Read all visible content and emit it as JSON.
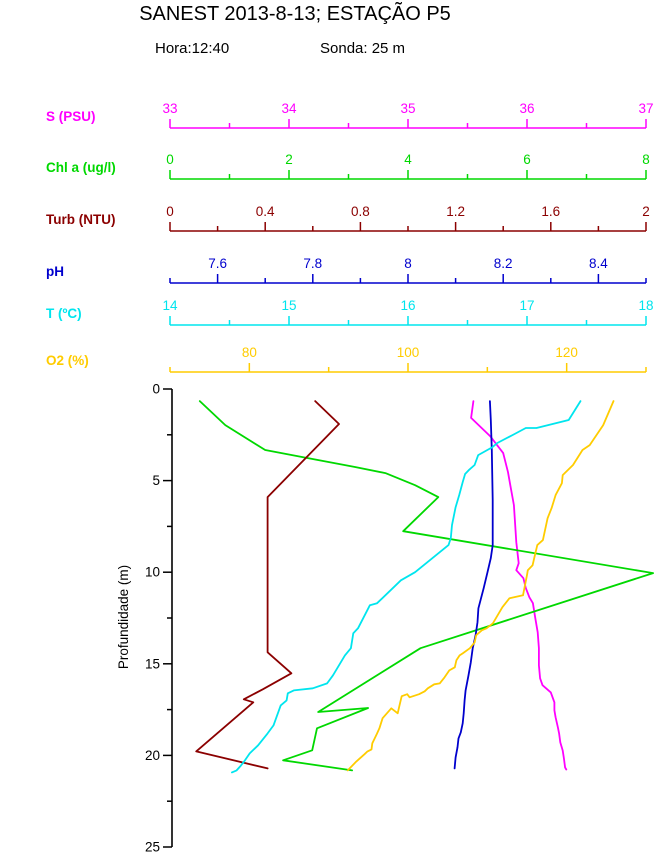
{
  "header": {
    "title": "SANEST 2013-8-13; ESTAÇÃO P5",
    "hora": "Hora:12:40",
    "sonda": "Sonda: 25 m"
  },
  "chart_data": {
    "type": "line",
    "title": "SANEST 2013-8-13; ESTAÇÃO P5",
    "subtitle": {
      "hora": "Hora:12:40",
      "sonda": "Sonda: 25 m"
    },
    "ylabel": "Profundidade (m)",
    "grid": false,
    "legend_position": "left-axis-labels",
    "depth_axis": {
      "min": 0,
      "max": 25,
      "labeled": [
        "0",
        "5",
        "10",
        "15",
        "20",
        "25"
      ],
      "minor_step": 2.5,
      "unit": "m"
    },
    "series": [
      {
        "id": "s-psu",
        "name": "S (PSU)",
        "color": "#FF00FF",
        "axis": {
          "min": 33,
          "max": 37,
          "labeled": [
            "33",
            "34",
            "35",
            "36",
            "37"
          ],
          "minor_step": 0.5
        },
        "points": [
          [
            35.55,
            0.66
          ],
          [
            35.53,
            1.58
          ],
          [
            35.69,
            2.57
          ],
          [
            35.8,
            3.5
          ],
          [
            35.84,
            4.54
          ],
          [
            35.86,
            5.25
          ],
          [
            35.89,
            6.34
          ],
          [
            35.91,
            8.36
          ],
          [
            35.93,
            9.51
          ],
          [
            35.91,
            9.89
          ],
          [
            35.97,
            10.33
          ],
          [
            35.99,
            10.87
          ],
          [
            36.02,
            11.37
          ],
          [
            36.05,
            11.69
          ],
          [
            36.07,
            12.51
          ],
          [
            36.09,
            13.28
          ],
          [
            36.1,
            14.15
          ],
          [
            36.1,
            15.08
          ],
          [
            36.11,
            15.79
          ],
          [
            36.13,
            16.17
          ],
          [
            36.2,
            16.56
          ],
          [
            36.23,
            17.1
          ],
          [
            36.23,
            17.54
          ],
          [
            36.24,
            17.92
          ],
          [
            36.26,
            18.47
          ],
          [
            36.27,
            18.8
          ],
          [
            36.28,
            19.29
          ],
          [
            36.3,
            19.73
          ],
          [
            36.31,
            20.16
          ],
          [
            36.32,
            20.66
          ],
          [
            36.33,
            20.77
          ]
        ]
      },
      {
        "id": "chl-a",
        "name": "Chl a (ug/l)",
        "color": "#00D800",
        "axis": {
          "min": 0,
          "max": 8,
          "labeled": [
            "0",
            "2",
            "4",
            "6",
            "8"
          ],
          "minor_step": 1
        },
        "points": [
          [
            0.5,
            0.66
          ],
          [
            0.93,
            1.97
          ],
          [
            1.6,
            3.33
          ],
          [
            2.24,
            3.72
          ],
          [
            3.11,
            4.26
          ],
          [
            3.62,
            4.59
          ],
          [
            4.12,
            5.25
          ],
          [
            4.51,
            5.9
          ],
          [
            3.92,
            7.76
          ],
          [
            8.12,
            10.05
          ],
          [
            4.21,
            14.15
          ],
          [
            2.49,
            17.63
          ],
          [
            3.33,
            17.41
          ],
          [
            2.47,
            18.52
          ],
          [
            2.39,
            19.72
          ],
          [
            1.9,
            20.27
          ],
          [
            3.06,
            20.82
          ]
        ]
      },
      {
        "id": "turb-ntu",
        "name": "Turb (NTU)",
        "color": "#8B0000",
        "axis": {
          "min": 0,
          "max": 2,
          "labeled": [
            "0",
            "0.4",
            "0.8",
            "1.2",
            "1.6",
            "2"
          ],
          "minor_step": 0.2
        },
        "points": [
          [
            0.61,
            0.66
          ],
          [
            0.71,
            1.91
          ],
          [
            0.41,
            5.9
          ],
          [
            0.41,
            14.37
          ],
          [
            0.51,
            15.52
          ],
          [
            0.39,
            16.39
          ],
          [
            0.31,
            16.94
          ],
          [
            0.35,
            17.1
          ],
          [
            0.11,
            19.78
          ],
          [
            0.41,
            20.71
          ]
        ]
      },
      {
        "id": "ph",
        "name": "pH",
        "color": "#0000CD",
        "axis": {
          "min": 7.5,
          "max": 8.5,
          "labeled": [
            "7.6",
            "7.8",
            "8",
            "8.2",
            "8.4"
          ],
          "minor_step": 0.1
        },
        "points": [
          [
            8.172,
            0.66
          ],
          [
            8.174,
            1.69
          ],
          [
            8.176,
            3.33
          ],
          [
            8.178,
            6.07
          ],
          [
            8.178,
            8.52
          ],
          [
            8.174,
            9.23
          ],
          [
            8.167,
            10.0
          ],
          [
            8.159,
            10.87
          ],
          [
            8.148,
            11.97
          ],
          [
            8.146,
            12.73
          ],
          [
            8.142,
            13.44
          ],
          [
            8.136,
            14.15
          ],
          [
            8.132,
            14.92
          ],
          [
            8.127,
            15.63
          ],
          [
            8.121,
            16.45
          ],
          [
            8.119,
            17.0
          ],
          [
            8.117,
            17.7
          ],
          [
            8.115,
            18.25
          ],
          [
            8.111,
            18.74
          ],
          [
            8.106,
            19.07
          ],
          [
            8.104,
            19.56
          ],
          [
            8.1,
            20.11
          ],
          [
            8.098,
            20.71
          ]
        ]
      },
      {
        "id": "t-c",
        "name": "T (ºC)",
        "color": "#00E5EE",
        "axis": {
          "min": 14,
          "max": 18,
          "labeled": [
            "14",
            "15",
            "16",
            "17",
            "18"
          ],
          "minor_step": 0.5
        },
        "points": [
          [
            17.45,
            0.66
          ],
          [
            17.35,
            1.69
          ],
          [
            17.08,
            2.13
          ],
          [
            16.99,
            2.13
          ],
          [
            16.88,
            2.51
          ],
          [
            16.75,
            2.95
          ],
          [
            16.71,
            3.17
          ],
          [
            16.59,
            3.61
          ],
          [
            16.56,
            4.15
          ],
          [
            16.51,
            4.43
          ],
          [
            16.48,
            4.64
          ],
          [
            16.46,
            5.08
          ],
          [
            16.43,
            5.79
          ],
          [
            16.4,
            6.45
          ],
          [
            16.37,
            7.43
          ],
          [
            16.36,
            8.14
          ],
          [
            16.34,
            8.52
          ],
          [
            16.06,
            10.0
          ],
          [
            15.94,
            10.44
          ],
          [
            15.74,
            11.69
          ],
          [
            15.68,
            11.8
          ],
          [
            15.58,
            13.06
          ],
          [
            15.54,
            13.33
          ],
          [
            15.52,
            14.15
          ],
          [
            15.47,
            14.54
          ],
          [
            15.37,
            15.63
          ],
          [
            15.32,
            16.07
          ],
          [
            15.2,
            16.34
          ],
          [
            15.04,
            16.45
          ],
          [
            14.99,
            16.61
          ],
          [
            14.98,
            17.0
          ],
          [
            14.93,
            17.27
          ],
          [
            14.87,
            18.36
          ],
          [
            14.82,
            18.8
          ],
          [
            14.74,
            19.45
          ],
          [
            14.67,
            19.89
          ],
          [
            14.63,
            20.27
          ],
          [
            14.59,
            20.6
          ],
          [
            14.56,
            20.82
          ],
          [
            14.52,
            20.93
          ]
        ]
      },
      {
        "id": "o2-pct",
        "name": "O2 (%)",
        "color": "#FFCC00",
        "axis": {
          "min": 70,
          "max": 130,
          "labeled": [
            "80",
            "100",
            "120"
          ],
          "minor_step": 10
        },
        "points": [
          [
            125.9,
            0.66
          ],
          [
            124.6,
            1.97
          ],
          [
            122.9,
            3.06
          ],
          [
            122.0,
            3.33
          ],
          [
            120.8,
            4.15
          ],
          [
            119.5,
            4.7
          ],
          [
            119.4,
            5.14
          ],
          [
            118.6,
            5.79
          ],
          [
            118.1,
            6.5
          ],
          [
            117.6,
            7.05
          ],
          [
            117.0,
            8.25
          ],
          [
            116.3,
            8.52
          ],
          [
            116.0,
            9.07
          ],
          [
            115.7,
            9.62
          ],
          [
            115.1,
            9.89
          ],
          [
            115.0,
            10.16
          ],
          [
            114.5,
            11.26
          ],
          [
            112.8,
            11.42
          ],
          [
            111.9,
            11.91
          ],
          [
            111.3,
            12.35
          ],
          [
            110.7,
            12.79
          ],
          [
            109.9,
            13.06
          ],
          [
            109.3,
            13.17
          ],
          [
            108.6,
            13.44
          ],
          [
            108.4,
            13.83
          ],
          [
            107.8,
            14.15
          ],
          [
            106.9,
            14.43
          ],
          [
            106.5,
            14.54
          ],
          [
            106.1,
            14.81
          ],
          [
            105.9,
            15.19
          ],
          [
            105.2,
            15.36
          ],
          [
            104.6,
            15.74
          ],
          [
            104.0,
            16.07
          ],
          [
            103.3,
            16.12
          ],
          [
            102.5,
            16.34
          ],
          [
            102.1,
            16.5
          ],
          [
            101.4,
            16.66
          ],
          [
            100.2,
            16.83
          ],
          [
            99.9,
            16.66
          ],
          [
            99.2,
            16.77
          ],
          [
            98.9,
            17.32
          ],
          [
            98.7,
            17.7
          ],
          [
            97.9,
            17.43
          ],
          [
            96.8,
            17.97
          ],
          [
            96.4,
            18.52
          ],
          [
            96.1,
            18.8
          ],
          [
            95.8,
            19.07
          ],
          [
            95.5,
            19.34
          ],
          [
            95.4,
            19.67
          ],
          [
            94.9,
            19.78
          ],
          [
            94.5,
            19.94
          ],
          [
            93.5,
            20.33
          ],
          [
            92.4,
            20.82
          ]
        ]
      }
    ]
  }
}
